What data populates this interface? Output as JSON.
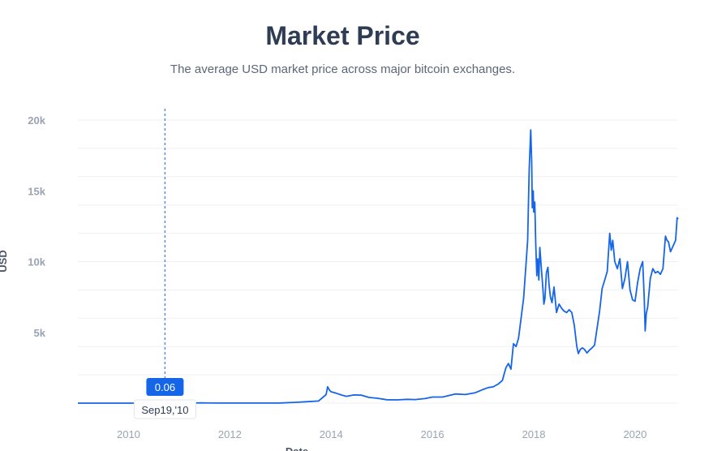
{
  "header": {
    "title": "Market Price",
    "subtitle": "The average USD market price across major bitcoin exchanges."
  },
  "tooltip": {
    "value": "0.06",
    "date": "Sep19,'10",
    "x_year": 2010.72
  },
  "colors": {
    "line": "#1565e8",
    "grid": "#eef0f3",
    "crosshair": "#5a8fd6",
    "tooltip_bg": "#1565e8"
  },
  "chart_data": {
    "type": "line",
    "title": "Market Price",
    "subtitle": "The average USD market price across major bitcoin exchanges.",
    "xlabel": "Date",
    "ylabel": "USD",
    "xlim": [
      2009.0,
      2020.85
    ],
    "ylim": [
      0,
      20000
    ],
    "x_ticks": [
      2010,
      2012,
      2014,
      2016,
      2018,
      2020
    ],
    "x_tick_labels": [
      "2010",
      "2012",
      "2014",
      "2016",
      "2018",
      "2020"
    ],
    "y_ticks": [
      5000,
      10000,
      15000,
      20000
    ],
    "y_tick_labels": [
      "5k",
      "10k",
      "15k",
      "20k"
    ],
    "grid": true,
    "legend": "none",
    "series": [
      {
        "x": [
          2009.0,
          2010.0,
          2010.72,
          2011.0,
          2011.45,
          2011.8,
          2012.0,
          2012.5,
          2013.0,
          2013.3,
          2013.5,
          2013.75,
          2013.9,
          2013.93,
          2013.97,
          2014.0,
          2014.1,
          2014.2,
          2014.3,
          2014.45,
          2014.6,
          2014.75,
          2014.9,
          2015.1,
          2015.3,
          2015.5,
          2015.65,
          2015.85,
          2016.0,
          2016.2,
          2016.45,
          2016.65,
          2016.85,
          2017.0,
          2017.1,
          2017.2,
          2017.3,
          2017.38,
          2017.45,
          2017.5,
          2017.55,
          2017.6,
          2017.65,
          2017.7,
          2017.75,
          2017.8,
          2017.85,
          2017.88,
          2017.91,
          2017.94,
          2017.96,
          2017.97,
          2017.99,
          2018.0,
          2018.02,
          2018.04,
          2018.06,
          2018.08,
          2018.1,
          2018.12,
          2018.15,
          2018.18,
          2018.2,
          2018.22,
          2018.25,
          2018.28,
          2018.3,
          2018.33,
          2018.36,
          2018.4,
          2018.45,
          2018.5,
          2018.55,
          2018.6,
          2018.65,
          2018.7,
          2018.75,
          2018.8,
          2018.85,
          2018.88,
          2018.92,
          2018.96,
          2019.0,
          2019.05,
          2019.1,
          2019.15,
          2019.2,
          2019.25,
          2019.3,
          2019.35,
          2019.4,
          2019.45,
          2019.5,
          2019.53,
          2019.56,
          2019.6,
          2019.65,
          2019.7,
          2019.75,
          2019.8,
          2019.85,
          2019.9,
          2019.95,
          2020.0,
          2020.05,
          2020.1,
          2020.15,
          2020.18,
          2020.2,
          2020.22,
          2020.25,
          2020.3,
          2020.35,
          2020.4,
          2020.45,
          2020.5,
          2020.55,
          2020.6,
          2020.63,
          2020.66,
          2020.7,
          2020.75,
          2020.8,
          2020.83,
          2020.85
        ],
        "y": [
          0,
          0.1,
          0.06,
          0.3,
          18,
          3,
          5,
          7,
          13,
          60,
          100,
          150,
          600,
          1150,
          900,
          800,
          700,
          580,
          480,
          580,
          560,
          400,
          350,
          240,
          230,
          270,
          250,
          320,
          430,
          430,
          650,
          610,
          740,
          970,
          1100,
          1150,
          1350,
          1600,
          2500,
          2800,
          2400,
          4200,
          4000,
          4600,
          6000,
          7400,
          10000,
          11500,
          16500,
          19300,
          17000,
          13800,
          15000,
          13500,
          14200,
          11200,
          9000,
          10200,
          8700,
          11000,
          9500,
          8100,
          7000,
          7400,
          9200,
          9600,
          8400,
          7500,
          7100,
          8200,
          6400,
          7000,
          6700,
          6500,
          6400,
          6600,
          6400,
          5500,
          4000,
          3500,
          3800,
          3900,
          3800,
          3550,
          3750,
          3900,
          4100,
          5300,
          6500,
          8100,
          8700,
          9300,
          12000,
          10800,
          11500,
          10000,
          9500,
          10200,
          8100,
          8800,
          10000,
          8000,
          7300,
          7200,
          8500,
          9500,
          10000,
          7500,
          5100,
          6300,
          6800,
          8800,
          9500,
          9200,
          9300,
          9100,
          9500,
          11800,
          11500,
          11400,
          10700,
          11100,
          11500,
          13100,
          13000
        ]
      }
    ]
  }
}
